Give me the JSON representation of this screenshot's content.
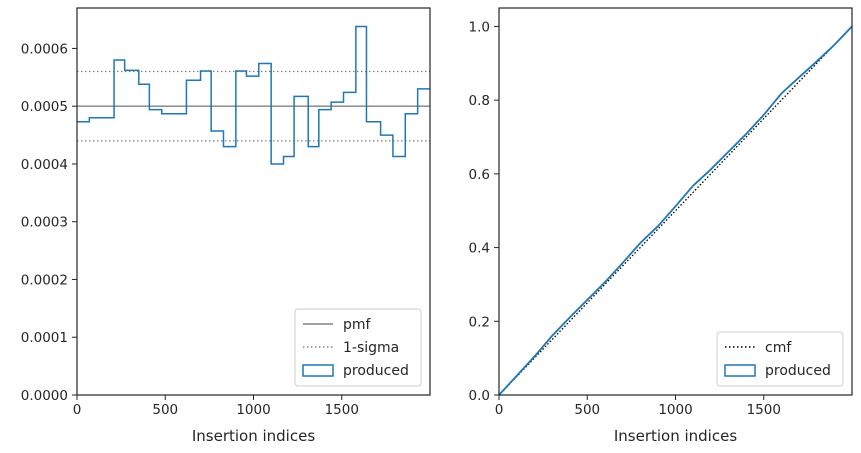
{
  "chart_data": [
    {
      "type": "step",
      "xlabel": "Insertion indices",
      "ylabel": "",
      "xlim": [
        0,
        2000
      ],
      "ylim": [
        0,
        0.00067
      ],
      "xticks": [
        0,
        500,
        1000,
        1500
      ],
      "xtick_labels": [
        "0",
        "500",
        "1000",
        "1500"
      ],
      "yticks": [
        0,
        0.0001,
        0.0002,
        0.0003,
        0.0004,
        0.0005,
        0.0006
      ],
      "ytick_labels": [
        "0.0000",
        "0.0001",
        "0.0002",
        "0.0003",
        "0.0004",
        "0.0005",
        "0.0006"
      ],
      "legend_position": "bottom-right",
      "legend": [
        {
          "label": "pmf",
          "style": "solid-line",
          "color": "#808080"
        },
        {
          "label": "1-sigma",
          "style": "dotted-line",
          "color": "#808080"
        },
        {
          "label": "produced",
          "style": "patch",
          "color": "#1f77b4"
        }
      ],
      "reference_lines": [
        {
          "name": "pmf",
          "y": 0.0005,
          "style": "solid",
          "color": "#808080"
        },
        {
          "name": "1-sigma",
          "y": 0.00056,
          "style": "dotted",
          "color": "#808080"
        },
        {
          "name": "1-sigma",
          "y": 0.00044,
          "style": "dotted",
          "color": "#808080"
        }
      ],
      "series": [
        {
          "name": "produced",
          "color": "#1f77b4",
          "bin_edges": [
            0,
            70,
            210,
            270,
            350,
            410,
            480,
            620,
            700,
            760,
            830,
            900,
            960,
            1030,
            1100,
            1170,
            1230,
            1310,
            1370,
            1440,
            1510,
            1580,
            1640,
            1720,
            1790,
            1860,
            1930,
            2000
          ],
          "values": [
            0.000473,
            0.00048,
            0.00058,
            0.000562,
            0.000538,
            0.000494,
            0.000487,
            0.000545,
            0.000561,
            0.000457,
            0.00043,
            0.000561,
            0.000552,
            0.000574,
            0.0004,
            0.000413,
            0.000517,
            0.00043,
            0.000494,
            0.000507,
            0.000524,
            0.000638,
            0.000473,
            0.00045,
            0.000413,
            0.000487,
            0.00053
          ]
        }
      ]
    },
    {
      "type": "line",
      "xlabel": "Insertion indices",
      "ylabel": "",
      "xlim": [
        0,
        2000
      ],
      "ylim": [
        0,
        1.05
      ],
      "xticks": [
        0,
        500,
        1000,
        1500
      ],
      "xtick_labels": [
        "0",
        "500",
        "1000",
        "1500"
      ],
      "yticks": [
        0,
        0.2,
        0.4,
        0.6,
        0.8,
        1.0
      ],
      "ytick_labels": [
        "0.0",
        "0.2",
        "0.4",
        "0.6",
        "0.8",
        "1.0"
      ],
      "legend_position": "bottom-right",
      "legend": [
        {
          "label": "cmf",
          "style": "dotted-line",
          "color": "#000000"
        },
        {
          "label": "produced",
          "style": "patch",
          "color": "#1f77b4"
        }
      ],
      "series": [
        {
          "name": "cmf",
          "style": "dotted",
          "color": "#000000",
          "x": [
            0,
            2000
          ],
          "y": [
            0,
            1.0
          ]
        },
        {
          "name": "produced",
          "style": "solid",
          "color": "#1f77b4",
          "x": [
            0,
            100,
            200,
            300,
            400,
            500,
            600,
            700,
            800,
            900,
            1000,
            1100,
            1200,
            1300,
            1400,
            1500,
            1600,
            1700,
            1800,
            1900,
            2000
          ],
          "y": [
            0,
            0.052,
            0.104,
            0.16,
            0.21,
            0.258,
            0.306,
            0.358,
            0.412,
            0.458,
            0.512,
            0.568,
            0.612,
            0.66,
            0.708,
            0.76,
            0.818,
            0.862,
            0.905,
            0.95,
            1.0
          ]
        }
      ]
    }
  ]
}
